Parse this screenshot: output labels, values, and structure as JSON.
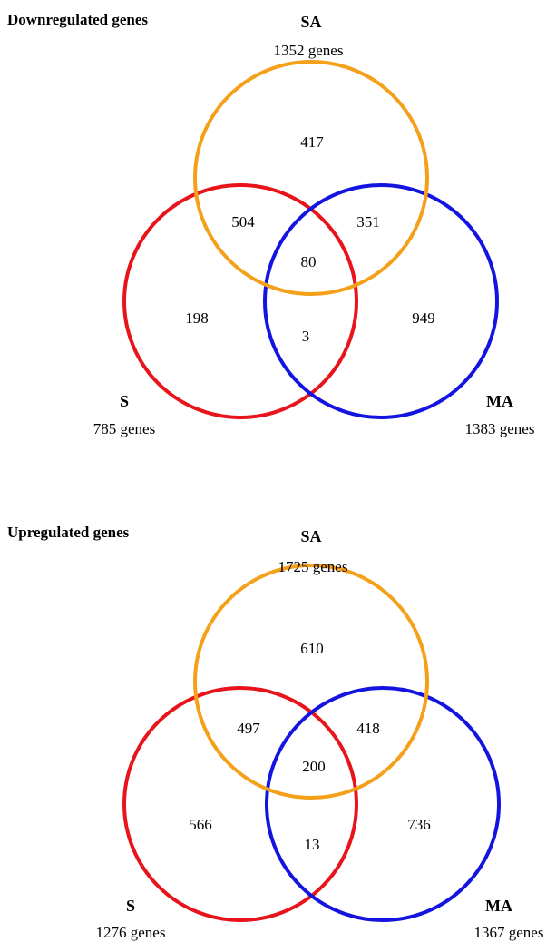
{
  "diagrams": [
    {
      "title": "Downregulated genes",
      "sets": {
        "sa": {
          "name": "SA",
          "count_label": "1352 genes",
          "color": "#f5a01a"
        },
        "s": {
          "name": "S",
          "count_label": "785 genes",
          "color": "#e8141b"
        },
        "ma": {
          "name": "MA",
          "count_label": "1383 genes",
          "color": "#1414e0"
        }
      },
      "regions": {
        "sa_only": "417",
        "s_sa": "504",
        "sa_ma": "351",
        "all": "80",
        "s_only": "198",
        "s_ma": "3",
        "ma_only": "949"
      }
    },
    {
      "title": "Upregulated genes",
      "sets": {
        "sa": {
          "name": "SA",
          "count_label": "1725 genes",
          "color": "#f5a01a"
        },
        "s": {
          "name": "S",
          "count_label": "1276 genes",
          "color": "#e8141b"
        },
        "ma": {
          "name": "MA",
          "count_label": "1367 genes",
          "color": "#1414e0"
        }
      },
      "regions": {
        "sa_only": "610",
        "s_sa": "497",
        "sa_ma": "418",
        "all": "200",
        "s_only": "566",
        "s_ma": "13",
        "ma_only": "736"
      }
    }
  ]
}
